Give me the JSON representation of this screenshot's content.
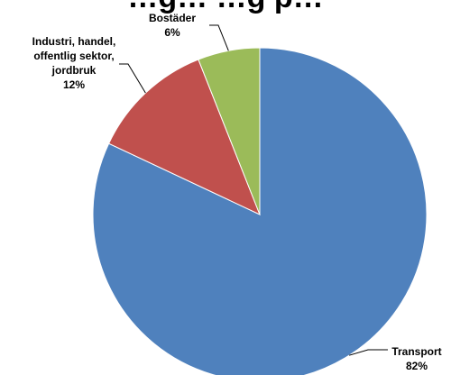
{
  "chart_data": {
    "type": "pie",
    "title": "…g… …g p…",
    "categories": [
      "Transport",
      "Industri, handel, offentlig sektor, jordbruk",
      "Bostäder"
    ],
    "values": [
      82,
      12,
      6
    ],
    "series": [
      {
        "values": [
          82,
          12,
          6
        ]
      }
    ],
    "labels": [
      {
        "name_lines": [
          "Transport"
        ],
        "pct": "82%"
      },
      {
        "name_lines": [
          "Industri, handel,",
          "offentlig sektor,",
          "jordbruk"
        ],
        "pct": "12%"
      },
      {
        "name_lines": [
          "Bostäder"
        ],
        "pct": "6%"
      }
    ],
    "colors": [
      "#4F81BD",
      "#C0504D",
      "#9BBB59"
    ],
    "start_angle_deg": 0,
    "direction": "clockwise",
    "legend": "none"
  }
}
